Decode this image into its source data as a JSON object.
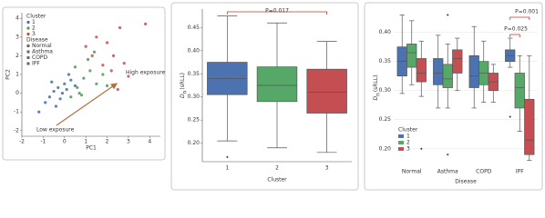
{
  "chart_data": [
    {
      "type": "scatter",
      "xlabel": "PC1",
      "ylabel": "PC2",
      "xlim": [
        -2,
        4.5
      ],
      "ylim": [
        -2.3,
        4.3
      ],
      "xticks": [
        -2,
        -1,
        0,
        1,
        2,
        3,
        4
      ],
      "yticks": [
        -2,
        -1,
        0,
        1,
        2,
        3,
        4
      ],
      "legend_title": "Cluster",
      "series": [
        {
          "name": "1",
          "color": "#3b6fb6",
          "x": [
            -1.2,
            -0.9,
            -0.7,
            -0.5,
            -0.3,
            -0.2,
            0,
            0.1,
            0.3,
            -0.6,
            -0.1,
            0.2,
            0.5,
            -0.4
          ],
          "y": [
            -1.0,
            -0.5,
            -0.2,
            0.1,
            0.3,
            -0.3,
            0.5,
            0.2,
            0.7,
            0.6,
            0,
            1.0,
            0.4,
            -0.7
          ]
        },
        {
          "name": "2",
          "color": "#4a9a5b",
          "x": [
            0.3,
            0.6,
            0.9,
            1.2,
            0.8,
            1.5,
            1.1,
            0.5,
            1.8,
            1.4,
            0.7,
            2.0
          ],
          "y": [
            -0.2,
            0.3,
            0.8,
            1.2,
            -0.1,
            0.5,
            1.8,
            1.4,
            1.0,
            2.2,
            0.0,
            0.4
          ]
        },
        {
          "name": "3",
          "color": "#c0504d",
          "x": [
            1.0,
            1.5,
            2.0,
            2.3,
            2.6,
            1.8,
            2.2,
            3.0,
            2.5,
            1.3,
            2.8,
            3.8
          ],
          "y": [
            2.5,
            3.0,
            2.7,
            2.0,
            3.5,
            1.5,
            1.2,
            0.9,
            0.2,
            2.0,
            1.6,
            3.7
          ]
        }
      ],
      "disease_legend_title": "Disease",
      "disease_legend": [
        "Normal",
        "Asthma",
        "COPD",
        "IPF"
      ],
      "annotations": [
        "High exposure",
        "Low exposure"
      ]
    },
    {
      "type": "box",
      "xlabel": "Cluster",
      "ylabel_parts": [
        "D",
        "n",
        "(sRLL)"
      ],
      "ylim": [
        0.16,
        0.49
      ],
      "yticks": [
        {
          "value": 0.2,
          "label": "0.20"
        },
        0.25,
        {
          "value": 0.3,
          "label": "0.30"
        },
        0.35,
        {
          "value": 0.4,
          "label": "0.40"
        },
        0.45
      ],
      "categories": [
        "1",
        "2",
        "3"
      ],
      "colors": [
        "#4c72b0",
        "#55a868",
        "#c44e52"
      ],
      "values": [
        {
          "whislo": 0.205,
          "q1": 0.305,
          "med": 0.34,
          "q3": 0.375,
          "whishi": 0.475,
          "fliers": [
            0.17
          ]
        },
        {
          "whislo": 0.19,
          "q1": 0.29,
          "med": 0.325,
          "q3": 0.365,
          "whishi": 0.46
        },
        {
          "whislo": 0.18,
          "q1": 0.265,
          "med": 0.31,
          "q3": 0.36,
          "whishi": 0.42
        }
      ],
      "pvalue": "P=0.017"
    },
    {
      "type": "grouped-box",
      "xlabel": "Disease",
      "ylabel_parts": [
        "D",
        "n",
        "(sRLL)"
      ],
      "ylim": [
        0.17,
        0.44
      ],
      "yticks": [
        {
          "value": 0.2,
          "label": "0.20"
        },
        0.25,
        {
          "value": 0.3,
          "label": "0.30"
        },
        0.35,
        {
          "value": 0.4,
          "label": "0.40"
        }
      ],
      "categories": [
        "Normal",
        "Asthma",
        "COPD",
        "IPF"
      ],
      "legend_title": "Cluster",
      "series": [
        {
          "name": "1",
          "color": "#4c72b0",
          "values": [
            {
              "whislo": 0.295,
              "q1": 0.325,
              "med": 0.35,
              "q3": 0.375,
              "whishi": 0.43
            },
            {
              "whislo": 0.27,
              "q1": 0.31,
              "med": 0.33,
              "q3": 0.355,
              "whishi": 0.395
            },
            {
              "whislo": 0.27,
              "q1": 0.305,
              "med": 0.325,
              "q3": 0.36,
              "whishi": 0.41
            },
            {
              "whislo": 0.34,
              "q1": 0.35,
              "med": 0.36,
              "q3": 0.37,
              "whishi": 0.39,
              "fliers": [
                0.255
              ]
            }
          ]
        },
        {
          "name": "2",
          "color": "#55a868",
          "values": [
            {
              "whislo": 0.31,
              "q1": 0.34,
              "med": 0.365,
              "q3": 0.38,
              "whishi": 0.42
            },
            {
              "whislo": 0.27,
              "q1": 0.305,
              "med": 0.32,
              "q3": 0.345,
              "whishi": 0.38,
              "fliers": [
                0.43,
                0.19
              ]
            },
            {
              "whislo": 0.28,
              "q1": 0.31,
              "med": 0.33,
              "q3": 0.35,
              "whishi": 0.385
            },
            {
              "whislo": 0.23,
              "q1": 0.27,
              "med": 0.305,
              "q3": 0.33,
              "whishi": 0.36
            }
          ]
        },
        {
          "name": "3",
          "color": "#c44e52",
          "values": [
            {
              "whislo": 0.29,
              "q1": 0.315,
              "med": 0.33,
              "q3": 0.355,
              "whishi": 0.385,
              "fliers": [
                0.2
              ]
            },
            {
              "whislo": 0.3,
              "q1": 0.33,
              "med": 0.355,
              "q3": 0.37,
              "whishi": 0.39
            },
            {
              "whislo": 0.28,
              "q1": 0.3,
              "med": 0.315,
              "q3": 0.33,
              "whishi": 0.345
            },
            {
              "whislo": 0.18,
              "q1": 0.19,
              "med": 0.215,
              "q3": 0.285,
              "whishi": 0.36
            }
          ]
        }
      ],
      "pvalues": [
        "P=0.001",
        "P=0.025"
      ]
    }
  ]
}
